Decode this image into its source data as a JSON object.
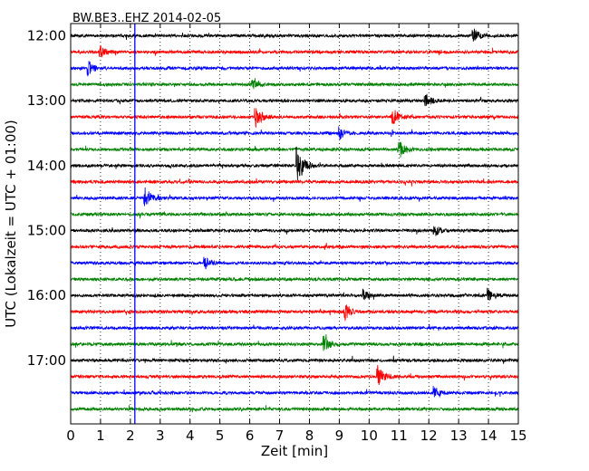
{
  "chart_data": {
    "type": "line",
    "title": "BW.BE3..EHZ 2014-02-05",
    "xlabel": "Zeit  [min]",
    "ylabel": "UTC (Lokalzeit = UTC + 01:00)",
    "xlim": [
      0,
      15
    ],
    "x_ticks": [
      "0",
      "1",
      "2",
      "3",
      "4",
      "5",
      "6",
      "7",
      "8",
      "9",
      "10",
      "11",
      "12",
      "13",
      "14",
      "15"
    ],
    "y_tick_labels": [
      "12:00",
      "13:00",
      "14:00",
      "15:00",
      "16:00",
      "17:00"
    ],
    "trace_start_times": [
      "12:00",
      "12:15",
      "12:30",
      "12:45",
      "13:00",
      "13:15",
      "13:30",
      "13:45",
      "14:00",
      "14:15",
      "14:30",
      "14:45",
      "15:00",
      "15:15",
      "15:30",
      "15:45",
      "16:00",
      "16:15",
      "16:30",
      "16:45",
      "17:00",
      "17:15",
      "17:30",
      "17:45"
    ],
    "series_colors": [
      "#000000",
      "#ff0000",
      "#0000ff",
      "#008000"
    ],
    "vertical_marker_min": 2.15,
    "marker_color": "#0000ff",
    "grid": "vertical dotted",
    "events": [
      {
        "trace": "12:00",
        "minute": 13.5,
        "amp": 0.6
      },
      {
        "trace": "12:15",
        "minute": 1.0,
        "amp": 0.45
      },
      {
        "trace": "12:30",
        "minute": 0.6,
        "amp": 0.55
      },
      {
        "trace": "12:45",
        "minute": 6.1,
        "amp": 0.4
      },
      {
        "trace": "13:00",
        "minute": 11.9,
        "amp": 0.55
      },
      {
        "trace": "13:15",
        "minute": 6.2,
        "amp": 0.9
      },
      {
        "trace": "13:15",
        "minute": 10.8,
        "amp": 0.7
      },
      {
        "trace": "13:30",
        "minute": 9.0,
        "amp": 0.5
      },
      {
        "trace": "13:45",
        "minute": 11.0,
        "amp": 0.8
      },
      {
        "trace": "14:00",
        "minute": 7.6,
        "amp": 1.6
      },
      {
        "trace": "14:30",
        "minute": 2.5,
        "amp": 0.85
      },
      {
        "trace": "15:00",
        "minute": 12.2,
        "amp": 0.4
      },
      {
        "trace": "15:30",
        "minute": 4.5,
        "amp": 0.45
      },
      {
        "trace": "16:00",
        "minute": 9.8,
        "amp": 0.45
      },
      {
        "trace": "16:00",
        "minute": 14.0,
        "amp": 0.5
      },
      {
        "trace": "16:15",
        "minute": 9.2,
        "amp": 0.6
      },
      {
        "trace": "16:45",
        "minute": 8.5,
        "amp": 0.55
      },
      {
        "trace": "17:15",
        "minute": 10.3,
        "amp": 0.8
      },
      {
        "trace": "17:30",
        "minute": 12.2,
        "amp": 0.45
      }
    ]
  }
}
